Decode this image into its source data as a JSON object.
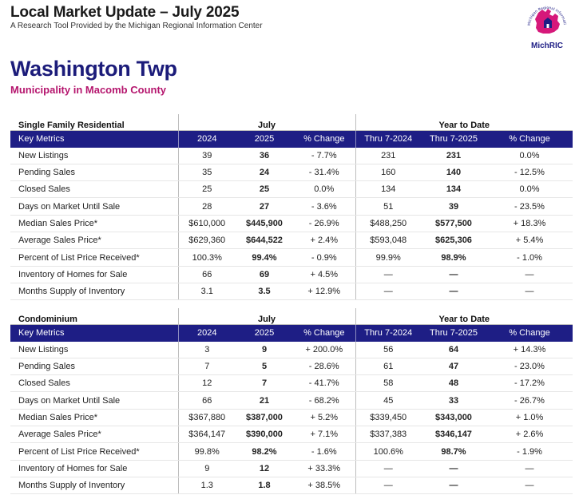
{
  "header": {
    "title": "Local Market Update – July 2025",
    "subtitle": "A Research Tool Provided by the Michigan Regional Information Center"
  },
  "logo": {
    "icon": "michigan-house-icon",
    "text": "MichRIC",
    "ring_text": "Michigan Regional Information Center",
    "color": "#d6187a"
  },
  "area": {
    "name": "Washington Twp",
    "subtitle": "Municipality in Macomb County"
  },
  "colors": {
    "title": "#1c1c7a",
    "subtitle": "#b5166e",
    "header_bar": "#1e1e85"
  },
  "columns": {
    "key_metrics": "Key Metrics",
    "month": "July",
    "ytd": "Year to Date",
    "y1": "2024",
    "y2": "2025",
    "change": "% Change",
    "ytd1": "Thru 7-2024",
    "ytd2": "Thru 7-2025"
  },
  "sections": [
    {
      "title": "Single Family Residential",
      "rows": [
        {
          "label": "New Listings",
          "m2024": "39",
          "m2025": "36",
          "mchg": "- 7.7%",
          "y2024": "231",
          "y2025": "231",
          "ychg": "0.0%"
        },
        {
          "label": "Pending Sales",
          "m2024": "35",
          "m2025": "24",
          "mchg": "- 31.4%",
          "y2024": "160",
          "y2025": "140",
          "ychg": "- 12.5%"
        },
        {
          "label": "Closed Sales",
          "m2024": "25",
          "m2025": "25",
          "mchg": "0.0%",
          "y2024": "134",
          "y2025": "134",
          "ychg": "0.0%"
        },
        {
          "label": "Days on Market Until Sale",
          "m2024": "28",
          "m2025": "27",
          "mchg": "- 3.6%",
          "y2024": "51",
          "y2025": "39",
          "ychg": "- 23.5%"
        },
        {
          "label": "Median Sales Price*",
          "m2024": "$610,000",
          "m2025": "$445,900",
          "mchg": "- 26.9%",
          "y2024": "$488,250",
          "y2025": "$577,500",
          "ychg": "+ 18.3%"
        },
        {
          "label": "Average Sales Price*",
          "m2024": "$629,360",
          "m2025": "$644,522",
          "mchg": "+ 2.4%",
          "y2024": "$593,048",
          "y2025": "$625,306",
          "ychg": "+ 5.4%"
        },
        {
          "label": "Percent of List Price Received*",
          "m2024": "100.3%",
          "m2025": "99.4%",
          "mchg": "- 0.9%",
          "y2024": "99.9%",
          "y2025": "98.9%",
          "ychg": "- 1.0%"
        },
        {
          "label": "Inventory of Homes for Sale",
          "m2024": "66",
          "m2025": "69",
          "mchg": "+ 4.5%",
          "y2024": "—",
          "y2025": "—",
          "ychg": "—"
        },
        {
          "label": "Months Supply of Inventory",
          "m2024": "3.1",
          "m2025": "3.5",
          "mchg": "+ 12.9%",
          "y2024": "—",
          "y2025": "—",
          "ychg": "—"
        }
      ]
    },
    {
      "title": "Condominium",
      "rows": [
        {
          "label": "New Listings",
          "m2024": "3",
          "m2025": "9",
          "mchg": "+ 200.0%",
          "y2024": "56",
          "y2025": "64",
          "ychg": "+ 14.3%"
        },
        {
          "label": "Pending Sales",
          "m2024": "7",
          "m2025": "5",
          "mchg": "- 28.6%",
          "y2024": "61",
          "y2025": "47",
          "ychg": "- 23.0%"
        },
        {
          "label": "Closed Sales",
          "m2024": "12",
          "m2025": "7",
          "mchg": "- 41.7%",
          "y2024": "58",
          "y2025": "48",
          "ychg": "- 17.2%"
        },
        {
          "label": "Days on Market Until Sale",
          "m2024": "66",
          "m2025": "21",
          "mchg": "- 68.2%",
          "y2024": "45",
          "y2025": "33",
          "ychg": "- 26.7%"
        },
        {
          "label": "Median Sales Price*",
          "m2024": "$367,880",
          "m2025": "$387,000",
          "mchg": "+ 5.2%",
          "y2024": "$339,450",
          "y2025": "$343,000",
          "ychg": "+ 1.0%"
        },
        {
          "label": "Average Sales Price*",
          "m2024": "$364,147",
          "m2025": "$390,000",
          "mchg": "+ 7.1%",
          "y2024": "$337,383",
          "y2025": "$346,147",
          "ychg": "+ 2.6%"
        },
        {
          "label": "Percent of List Price Received*",
          "m2024": "99.8%",
          "m2025": "98.2%",
          "mchg": "- 1.6%",
          "y2024": "100.6%",
          "y2025": "98.7%",
          "ychg": "- 1.9%"
        },
        {
          "label": "Inventory of Homes for Sale",
          "m2024": "9",
          "m2025": "12",
          "mchg": "+ 33.3%",
          "y2024": "—",
          "y2025": "—",
          "ychg": "—"
        },
        {
          "label": "Months Supply of Inventory",
          "m2024": "1.3",
          "m2025": "1.8",
          "mchg": "+ 38.5%",
          "y2024": "—",
          "y2025": "—",
          "ychg": "—"
        }
      ]
    }
  ]
}
